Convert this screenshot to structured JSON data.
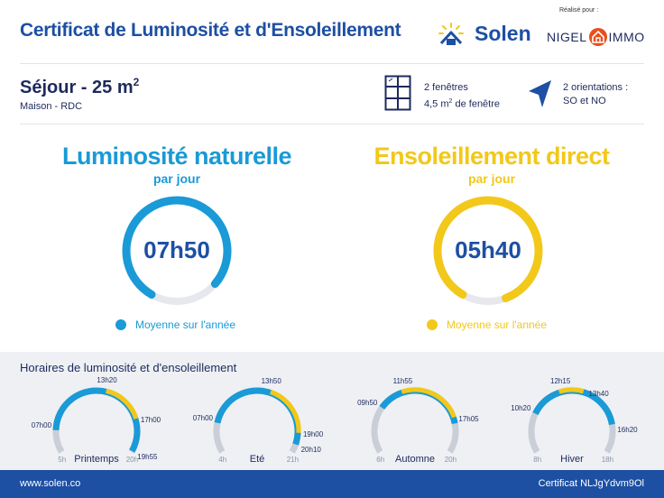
{
  "header": {
    "title": "Certificat de Luminosité et d'Ensoleillement",
    "brand": "Solen",
    "realise_par": "Réalisé pour :",
    "partner_left": "NIGEL",
    "partner_right": "IMMO"
  },
  "room": {
    "name": "Séjour - 25 m",
    "name_sup": "2",
    "subtitle": "Maison - RDC"
  },
  "windows": {
    "line1": "2 fenêtres",
    "line2_pre": "4,5 m",
    "line2_sup": "2",
    "line2_post": " de fenêtre",
    "icon": "window-icon"
  },
  "orientation": {
    "line1": "2 orientations :",
    "line2": "SO et NO",
    "icon": "compass-arrow-icon"
  },
  "luminosite": {
    "title": "Luminosité naturelle",
    "subtitle": "par jour",
    "value": "07h50",
    "fraction": 0.78,
    "legend": "Moyenne sur l'année",
    "color": "#1a9ad6"
  },
  "ensoleillement": {
    "title": "Ensoleillement direct",
    "subtitle": "par jour",
    "value": "05h40",
    "fraction": 0.86,
    "legend": "Moyenne sur l'année",
    "color": "#f2c81a"
  },
  "horaires": {
    "title": "Horaires de luminosité et d'ensoleillement",
    "seasons": [
      {
        "name": "Printemps",
        "tick_start": "5h",
        "tick_end": "20h",
        "lum_start": "07h00",
        "sun_start": "13h20",
        "sun_end": "17h00",
        "lum_end": "19h55"
      },
      {
        "name": "Eté",
        "tick_start": "4h",
        "tick_end": "21h",
        "lum_start": "07h00",
        "sun_start": "13h50",
        "sun_end": "19h00",
        "lum_end": "20h10"
      },
      {
        "name": "Automne",
        "tick_start": "6h",
        "tick_end": "20h",
        "lum_start": "09h50",
        "sun_start": "11h55",
        "sun_end": "17h05",
        "lum_end": ""
      },
      {
        "name": "Hiver",
        "tick_start": "8h",
        "tick_end": "18h",
        "lum_start": "10h20",
        "sun_start": "12h15",
        "sun_end": "13h40",
        "lum_end": "16h20"
      }
    ]
  },
  "footer": {
    "website": "www.solen.co",
    "certificate": "Certificat NLJgYdvm9Ol"
  },
  "colors": {
    "brand_blue": "#1d4fa3",
    "light_blue": "#1a9ad6",
    "yellow": "#f2c81a",
    "track": "#e6e8ee",
    "season_track": "#c9ced8"
  }
}
